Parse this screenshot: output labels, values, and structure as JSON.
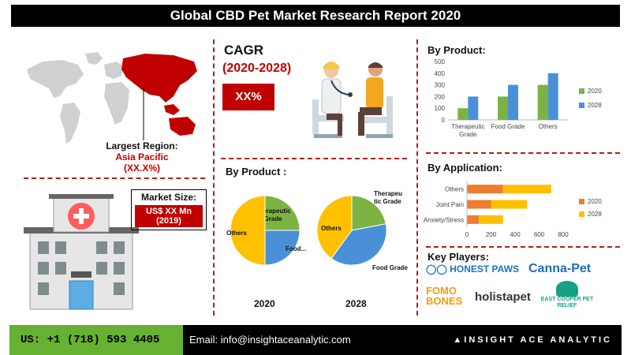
{
  "header": {
    "title": "Global CBD Pet Market Research Report 2020"
  },
  "region": {
    "label": "Largest Region:",
    "name": "Asia Pacific",
    "value": "(XX.X%)"
  },
  "market_size": {
    "label": "Market Size:",
    "value": "US$ XX Mn",
    "year": "(2019)"
  },
  "cagr": {
    "title": "CAGR",
    "period": "(2020-2028)",
    "value": "XX%"
  },
  "by_product_pies": {
    "title": "By Product :",
    "pie_2020_caption": "2020",
    "pie_2028_caption": "2028"
  },
  "by_product_bar": {
    "title": "By Product:"
  },
  "by_application_bar": {
    "title": "By Application:"
  },
  "key_players": {
    "title": "Key Players:",
    "names": [
      "HONEST PAWS",
      "Canna-Pet",
      "FOMO BONES",
      "holistapet",
      "EAST COOPER PET RELIEF"
    ]
  },
  "footer": {
    "phone": "US: +1 (718) 593 4405",
    "email": "Email: info@insightaceanalytic.com",
    "brand": "INSIGHT ACE ANALYTIC"
  },
  "colors": {
    "green": "#7cb342",
    "blue": "#4a90d9",
    "yellow": "#ffc000",
    "orange": "#ed7d31",
    "red": "#c00000"
  },
  "chart_data": [
    {
      "type": "bar",
      "title": "By Product:",
      "categories": [
        "Therapeutic Grade",
        "Food Grade",
        "Others"
      ],
      "series": [
        {
          "name": "2020",
          "values": [
            100,
            200,
            300
          ]
        },
        {
          "name": "2028",
          "values": [
            200,
            300,
            400
          ]
        }
      ],
      "ylim": [
        0,
        500
      ],
      "yticks": [
        0,
        100,
        200,
        300,
        400,
        500
      ],
      "legend": "right"
    },
    {
      "type": "bar",
      "orientation": "horizontal-stacked",
      "title": "By Application:",
      "categories": [
        "Others",
        "Joint Pain",
        "Anxiety/Stress"
      ],
      "series": [
        {
          "name": "2020",
          "values": [
            300,
            200,
            100
          ]
        },
        {
          "name": "2028",
          "values": [
            400,
            300,
            200
          ]
        }
      ],
      "xlim": [
        0,
        800
      ],
      "xticks": [
        0,
        200,
        400,
        600,
        800
      ],
      "legend": "right"
    },
    {
      "type": "pie",
      "caption": "2020",
      "slices": [
        {
          "label": "Therapeutic Grade",
          "value": 25
        },
        {
          "label": "Food...",
          "value": 25
        },
        {
          "label": "Others",
          "value": 50
        }
      ]
    },
    {
      "type": "pie",
      "caption": "2028",
      "slices": [
        {
          "label": "Therapeutic Grade",
          "value": 22
        },
        {
          "label": "Food Grade",
          "value": 38
        },
        {
          "label": "Others",
          "value": 40
        }
      ]
    }
  ]
}
